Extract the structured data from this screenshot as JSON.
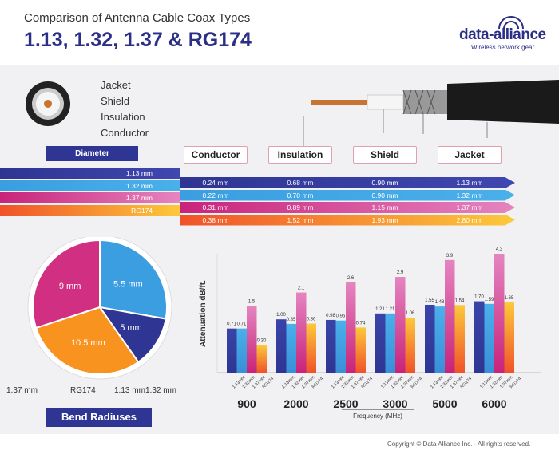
{
  "header": {
    "subtitle": "Comparison of Antenna Cable Coax Types",
    "title": "1.13, 1.32, 1.37 & RG174",
    "logo": "data-alliance",
    "tagline": "Wireless network gear"
  },
  "layers": [
    "Jacket",
    "Shield",
    "Insulation",
    "Conductor"
  ],
  "table": {
    "diameter_label": "Diameter",
    "columns": [
      "Conductor",
      "Insulation",
      "Shield",
      "Jacket"
    ],
    "rows": [
      {
        "type": "1.13 mm",
        "values": [
          "0.24 mm",
          "0.68 mm",
          "0.90 mm",
          "1.13 mm"
        ]
      },
      {
        "type": "1.32 mm",
        "values": [
          "0.22 mm",
          "0.70 mm",
          "0.90 mm",
          "1.32 mm"
        ]
      },
      {
        "type": "1.37 mm",
        "values": [
          "0.31 mm",
          "0.89 mm",
          "1.15 mm",
          "1.37 mm"
        ]
      },
      {
        "type": "RG174",
        "values": [
          "0.38 mm",
          "1.52 mm",
          "1.93 mm",
          "2.80 mm"
        ]
      }
    ]
  },
  "bend": {
    "title": "Bend Radiuses",
    "slices": [
      {
        "label": "5.5 mm",
        "value": 5.5,
        "cable": "1.32 mm"
      },
      {
        "label": "5 mm",
        "value": 5,
        "cable": "1.13 mm"
      },
      {
        "label": "10.5 mm",
        "value": 10.5,
        "cable": "RG174"
      },
      {
        "label": "9 mm",
        "value": 9,
        "cable": "1.37 mm"
      }
    ],
    "cable_labels": [
      "1.37 mm",
      "RG174",
      "1.13 mm",
      "1.32 mm"
    ]
  },
  "chart_data": {
    "type": "bar",
    "xlabel": "Frequency (MHz)",
    "ylabel": "Attenuation dB/ft.",
    "categories": [
      "900",
      "2000",
      "2500",
      "3000",
      "5000",
      "6000"
    ],
    "series_labels": [
      "1.13mm",
      "1.32mm",
      "1.37mm",
      "RG174"
    ],
    "series": [
      {
        "name": "1.13mm",
        "values": [
          0.71,
          1.0,
          0.98,
          1.21,
          1.55,
          1.7
        ]
      },
      {
        "name": "1.32mm",
        "values": [
          0.71,
          0.85,
          0.96,
          1.21,
          1.48,
          1.59
        ]
      },
      {
        "name": "1.37mm",
        "values": [
          1.5,
          2.1,
          2.6,
          2.9,
          3.9,
          4.3
        ]
      },
      {
        "name": "RG174",
        "values": [
          0.3,
          0.86,
          0.74,
          1.06,
          1.54,
          1.65
        ]
      }
    ],
    "value_labels": [
      [
        "0.71",
        "1.00",
        "0.98",
        "1.21",
        "1.55",
        "1.70"
      ],
      [
        "0.71",
        "0.85",
        "0.96",
        "1.21",
        "1.48",
        "1.59"
      ],
      [
        "1.5",
        "2.1",
        "2.6",
        "2.9",
        "3.9",
        "4.3"
      ],
      [
        "0.30",
        "0.86",
        "0.74",
        "1.06",
        "1.54",
        "1.65"
      ]
    ]
  },
  "colors": {
    "navy": "#2e3592",
    "blue": "#3a9ee0",
    "pink": "#d9408f",
    "orange": "#f7931e"
  },
  "footer": {
    "copyright": "Copyright © Data Alliance Inc. - All rights reserved."
  }
}
